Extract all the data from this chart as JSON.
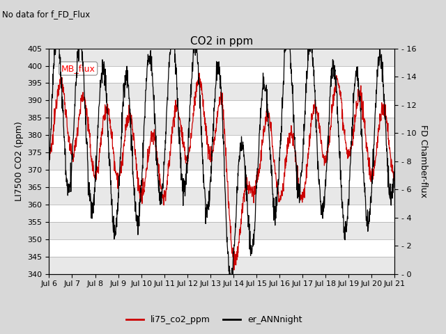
{
  "title": "CO2 in ppm",
  "subtitle": "No data for f_FD_Flux",
  "ylabel_left": "LI7500 CO2 (ppm)",
  "ylabel_right": "FD Chamber-flux",
  "ylim_left": [
    340,
    405
  ],
  "ylim_right": [
    0,
    16
  ],
  "yticks_left": [
    340,
    345,
    350,
    355,
    360,
    365,
    370,
    375,
    380,
    385,
    390,
    395,
    400,
    405
  ],
  "yticks_right": [
    0,
    2,
    4,
    6,
    8,
    10,
    12,
    14,
    16
  ],
  "xtick_labels": [
    "Jul 6",
    "Jul 7",
    "Jul 8",
    "Jul 9",
    "Jul 10",
    "Jul 11",
    "Jul 12",
    "Jul 13",
    "Jul 14",
    "Jul 15",
    "Jul 16",
    "Jul 17",
    "Jul 18",
    "Jul 19",
    "Jul 20",
    "Jul 21"
  ],
  "color_red": "#cc0000",
  "color_black": "#000000",
  "legend_label_red": "li75_co2_ppm",
  "legend_label_black": "er_ANNnight",
  "annotation_box": "MB_flux",
  "background_color": "#d8d8d8",
  "plot_bg": "#ffffff",
  "stripe_color": "#e8e8e8"
}
